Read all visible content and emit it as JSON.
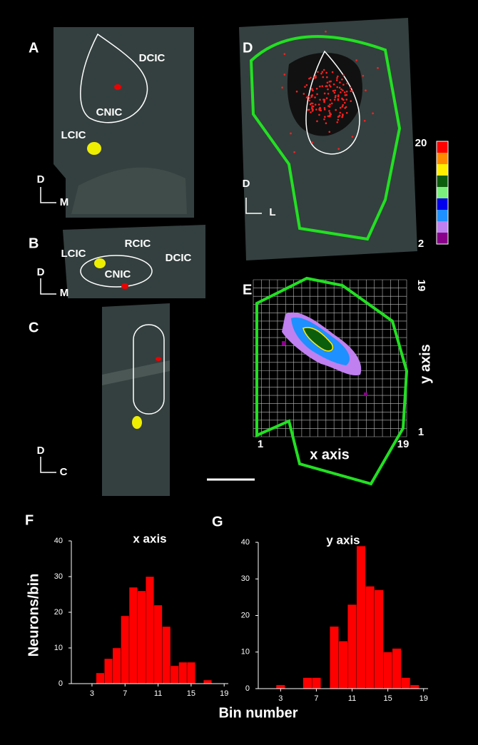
{
  "panels": [
    {
      "letter": "A",
      "labels": [
        "DCIC",
        "CNIC",
        "LCIC",
        "D",
        "M"
      ]
    },
    {
      "letter": "B",
      "labels": [
        "LCIC",
        "RCIC",
        "DCIC",
        "CNIC",
        "D",
        "M"
      ]
    },
    {
      "letter": "C",
      "labels": [
        "D",
        "C"
      ]
    },
    {
      "letter": "D",
      "labels": [
        "D",
        "L",
        "20",
        "2"
      ]
    },
    {
      "letter": "E",
      "labels": [
        "19",
        "1",
        "1",
        "19",
        "x axis",
        "y axis"
      ]
    }
  ],
  "xlabel": "Bin number",
  "chart_data": [
    {
      "type": "histogram",
      "letter": "F",
      "title": "x axis",
      "ylabel": "Neurons/bin",
      "color": "#ff0000",
      "bins": [
        0.5,
        1.5,
        2.5,
        3.5,
        4.5,
        5.5,
        6.5,
        7.5,
        8.5,
        9.5,
        10.5,
        11.5,
        12.5,
        13.5,
        14.5,
        15.5,
        16.5,
        17.5,
        18.5,
        19.5
      ],
      "values": [
        0,
        0,
        0,
        3,
        7,
        10,
        19,
        27,
        26,
        30,
        22,
        16,
        5,
        6,
        6,
        0,
        1,
        0,
        0
      ],
      "xlim": [
        0.5,
        19.5
      ],
      "xticks": [
        3,
        7,
        11,
        15,
        19
      ],
      "ylim": [
        0,
        40
      ],
      "yticks": [
        0,
        10,
        20,
        30,
        40
      ]
    },
    {
      "type": "histogram",
      "letter": "G",
      "title": "y axis",
      "color": "#ff0000",
      "bins": [
        0.5,
        1.5,
        2.5,
        3.5,
        4.5,
        5.5,
        6.5,
        7.5,
        8.5,
        9.5,
        10.5,
        11.5,
        12.5,
        13.5,
        14.5,
        15.5,
        16.5,
        17.5,
        18.5,
        19.5
      ],
      "values": [
        0,
        0,
        1,
        0,
        0,
        3,
        3,
        0,
        17,
        13,
        23,
        39,
        28,
        27,
        10,
        11,
        3,
        1,
        0
      ],
      "xlim": [
        0.5,
        19.5
      ],
      "xticks": [
        3,
        7,
        11,
        15,
        19
      ],
      "ylim": [
        0,
        40
      ],
      "yticks": [
        0,
        10,
        20,
        30,
        40
      ]
    }
  ]
}
